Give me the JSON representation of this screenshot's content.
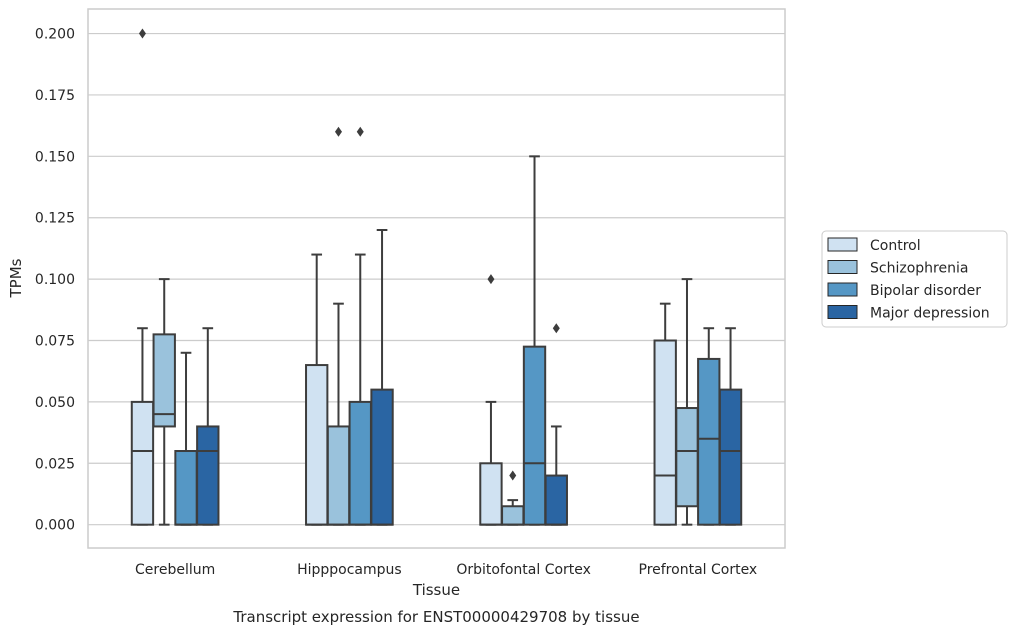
{
  "chart_data": {
    "type": "box",
    "title": "",
    "caption": "Transcript expression for ENST00000429708 by tissue",
    "xlabel": "Tissue",
    "ylabel": "TPMs",
    "ylim": [
      -0.0095,
      0.21
    ],
    "yticks": [
      0.0,
      0.025,
      0.05,
      0.075,
      0.1,
      0.125,
      0.15,
      0.175,
      0.2
    ],
    "ytick_labels": [
      "0.000",
      "0.025",
      "0.050",
      "0.075",
      "0.100",
      "0.125",
      "0.150",
      "0.175",
      "0.200"
    ],
    "grid": "y",
    "legend_position": "right",
    "categories": [
      "Cerebellum",
      "Hipppocampus",
      "Orbitofontal Cortex",
      "Prefrontal Cortex"
    ],
    "series": [
      {
        "name": "Control",
        "color": "#d0e2f2",
        "boxes": [
          {
            "min": 0.0,
            "q1": 0.0,
            "median": 0.03,
            "q3": 0.05,
            "max": 0.08,
            "outliers": [
              0.2
            ]
          },
          {
            "min": 0.0,
            "q1": 0.0,
            "median": 0.0,
            "q3": 0.065,
            "max": 0.11,
            "outliers": []
          },
          {
            "min": 0.0,
            "q1": 0.0,
            "median": 0.0,
            "q3": 0.025,
            "max": 0.05,
            "outliers": [
              0.1
            ]
          },
          {
            "min": 0.0,
            "q1": 0.0,
            "median": 0.02,
            "q3": 0.075,
            "max": 0.09,
            "outliers": []
          }
        ]
      },
      {
        "name": "Schizophrenia",
        "color": "#9ac2dc",
        "boxes": [
          {
            "min": 0.0,
            "q1": 0.04,
            "median": 0.045,
            "q3": 0.0775,
            "max": 0.1,
            "outliers": []
          },
          {
            "min": 0.0,
            "q1": 0.0,
            "median": 0.0,
            "q3": 0.04,
            "max": 0.09,
            "outliers": [
              0.16
            ]
          },
          {
            "min": 0.0,
            "q1": 0.0,
            "median": 0.0,
            "q3": 0.0075,
            "max": 0.01,
            "outliers": [
              0.02
            ]
          },
          {
            "min": 0.0,
            "q1": 0.0075,
            "median": 0.03,
            "q3": 0.0475,
            "max": 0.1,
            "outliers": []
          }
        ]
      },
      {
        "name": "Bipolar disorder",
        "color": "#5597c5",
        "boxes": [
          {
            "min": 0.0,
            "q1": 0.0,
            "median": 0.0,
            "q3": 0.03,
            "max": 0.07,
            "outliers": []
          },
          {
            "min": 0.0,
            "q1": 0.0,
            "median": 0.0,
            "q3": 0.05,
            "max": 0.11,
            "outliers": [
              0.16
            ]
          },
          {
            "min": 0.0,
            "q1": 0.0,
            "median": 0.025,
            "q3": 0.0725,
            "max": 0.15,
            "outliers": []
          },
          {
            "min": 0.0,
            "q1": 0.0,
            "median": 0.035,
            "q3": 0.0675,
            "max": 0.08,
            "outliers": []
          }
        ]
      },
      {
        "name": "Major depression",
        "color": "#2a65a3",
        "boxes": [
          {
            "min": 0.0,
            "q1": 0.0,
            "median": 0.03,
            "q3": 0.04,
            "max": 0.08,
            "outliers": []
          },
          {
            "min": 0.0,
            "q1": 0.0,
            "median": 0.0,
            "q3": 0.055,
            "max": 0.12,
            "outliers": []
          },
          {
            "min": 0.0,
            "q1": 0.0,
            "median": 0.0,
            "q3": 0.02,
            "max": 0.04,
            "outliers": [
              0.08
            ]
          },
          {
            "min": 0.0,
            "q1": 0.0,
            "median": 0.03,
            "q3": 0.055,
            "max": 0.08,
            "outliers": []
          }
        ]
      }
    ]
  }
}
